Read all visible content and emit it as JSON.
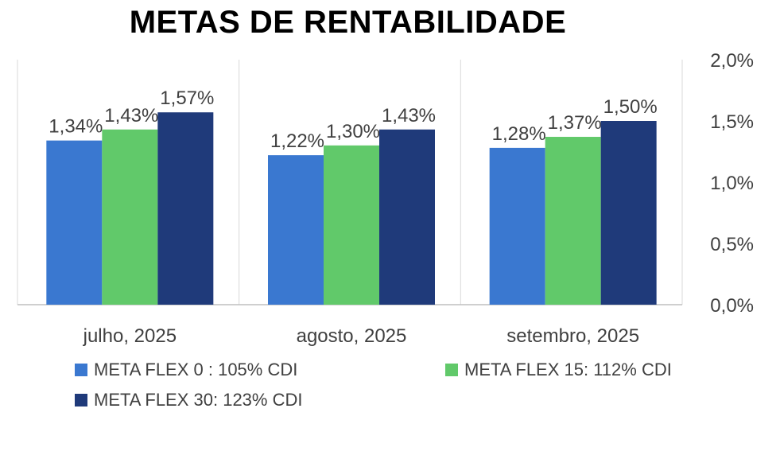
{
  "chart_data": {
    "type": "bar",
    "title": "METAS DE RENTABILIDADE",
    "categories": [
      "julho, 2025",
      "agosto, 2025",
      "setembro, 2025"
    ],
    "series": [
      {
        "name": "META FLEX 0 : 105% CDI",
        "color": "#3A78D0",
        "values": [
          1.34,
          1.22,
          1.28
        ],
        "labels": [
          "1,34%",
          "1,22%",
          "1,28%"
        ]
      },
      {
        "name": "META FLEX 15: 112% CDI",
        "color": "#61C96A",
        "values": [
          1.43,
          1.3,
          1.37
        ],
        "labels": [
          "1,43%",
          "1,30%",
          "1,37%"
        ]
      },
      {
        "name": "META FLEX 30: 123% CDI",
        "color": "#1F3A7A",
        "values": [
          1.57,
          1.43,
          1.5
        ],
        "labels": [
          "1,57%",
          "1,43%",
          "1,50%"
        ]
      }
    ],
    "y_axis": {
      "position": "right",
      "ylim": [
        0,
        2.0
      ],
      "ticks": [
        0,
        0.5,
        1.0,
        1.5,
        2.0
      ],
      "tick_labels": [
        "0,0%",
        "0,5%",
        "1,0%",
        "1,5%",
        "2,0%"
      ]
    },
    "xlabel": "",
    "ylabel": "",
    "legend_position": "bottom"
  }
}
